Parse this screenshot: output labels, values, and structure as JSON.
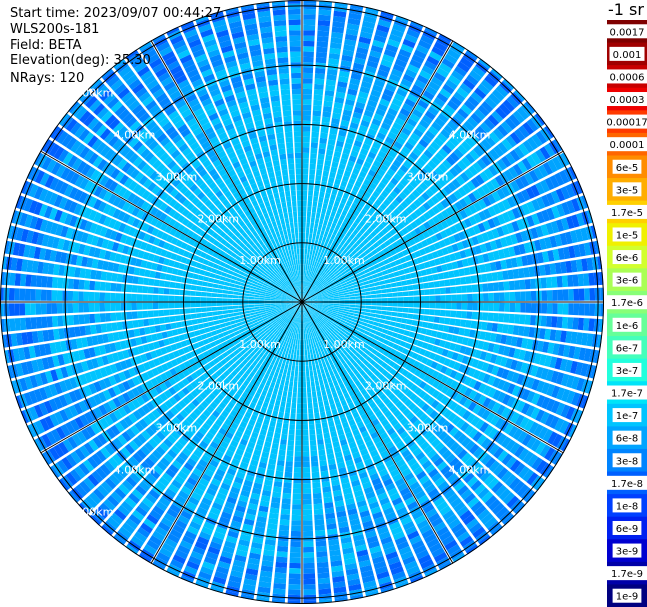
{
  "info": {
    "start_time": "Start time: 2023/09/07 00:44:27",
    "instrument": "WLS200s-181",
    "field": "Field: BETA",
    "elevation": "Elevation(deg): 35.30",
    "nrays": "NRays: 120"
  },
  "colorbar": {
    "unit": "-1 sr",
    "labels": [
      "0.0017",
      "0.001",
      "0.0006",
      "0.0003",
      "0.00017",
      "0.0001",
      "6e-5",
      "3e-5",
      "1.7e-5",
      "1e-5",
      "6e-6",
      "3e-6",
      "1.7e-6",
      "1e-6",
      "6e-7",
      "3e-7",
      "1.7e-7",
      "1e-7",
      "6e-8",
      "3e-8",
      "1.7e-8",
      "1e-8",
      "6e-9",
      "3e-9",
      "1.7e-9",
      "1e-9"
    ],
    "colors": [
      "#7f0000",
      "#a00000",
      "#c80000",
      "#ee0000",
      "#ff3a00",
      "#ff6600",
      "#ff8c00",
      "#ffad00",
      "#ffd000",
      "#f0f000",
      "#d2ff2e",
      "#aaff55",
      "#88ff77",
      "#66ff99",
      "#44ffbb",
      "#22ffdd",
      "#00e4f8",
      "#00c4ff",
      "#00a4ff",
      "#0084ff",
      "#0060ff",
      "#0040ff",
      "#0020f0",
      "#0000d0",
      "#0000a8",
      "#000080"
    ]
  },
  "chart_data": {
    "type": "heatmap",
    "subtype": "polar-ppi",
    "field": "BETA",
    "nrays": 120,
    "elevation_deg": 35.3,
    "range_ring_labels": [
      "1.00km",
      "2.00km",
      "3.00km",
      "4.00km",
      "5.00km"
    ],
    "range_rings_km": [
      1,
      2,
      3,
      4,
      5
    ],
    "max_range_km": 5.1,
    "azimuth_spokes_deg": [
      0,
      30,
      60,
      90,
      120,
      150,
      180,
      210,
      240,
      270,
      300,
      330
    ],
    "radial_profile_by_km": [
      {
        "range_km": 0.5,
        "level": "1.7e-7"
      },
      {
        "range_km": 1.0,
        "level": "1.7e-7"
      },
      {
        "range_km": 2.0,
        "level": "1.7e-7"
      },
      {
        "range_km": 3.0,
        "level": "1e-7"
      },
      {
        "range_km": 4.0,
        "level": "6e-8"
      },
      {
        "range_km": 5.0,
        "level": "3e-8"
      }
    ]
  }
}
